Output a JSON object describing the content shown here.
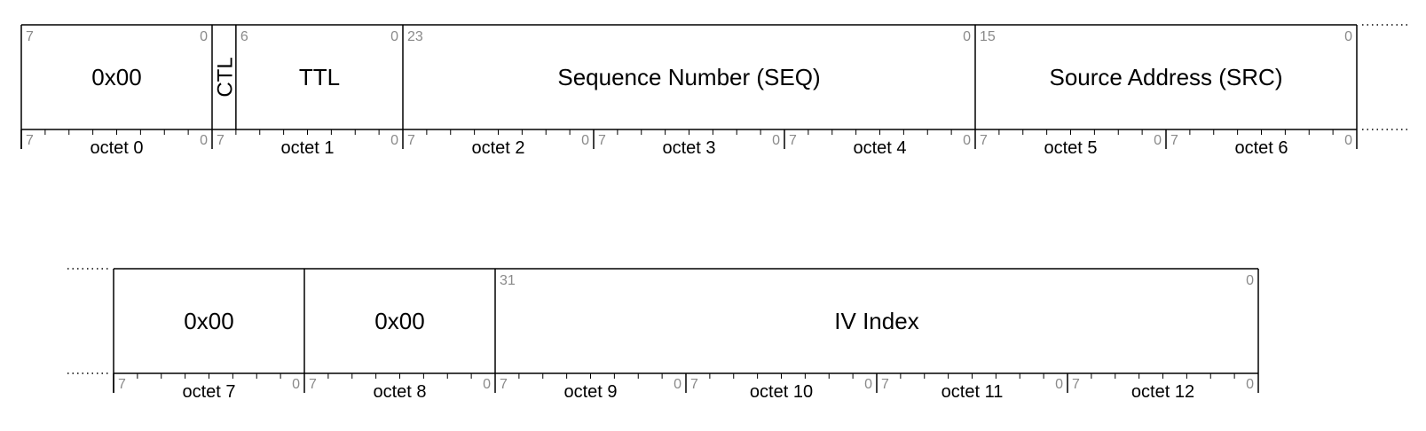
{
  "rows": [
    {
      "fields": [
        {
          "label": "0x00",
          "msb": "7",
          "lsb": "0",
          "octets": 1
        },
        {
          "label": "CTL",
          "msb": "",
          "lsb": "",
          "bits": 1,
          "vertical": true
        },
        {
          "label": "TTL",
          "msb": "6",
          "lsb": "0",
          "bits": 7
        },
        {
          "label": "Sequence Number (SEQ)",
          "msb": "23",
          "lsb": "0",
          "octets": 3
        },
        {
          "label": "Source Address (SRC)",
          "msb": "15",
          "lsb": "0",
          "octets": 2
        }
      ],
      "octets": [
        {
          "label": "octet 0",
          "msb": "7",
          "lsb": "0"
        },
        {
          "label": "octet 1",
          "msb": "7",
          "lsb": "0"
        },
        {
          "label": "octet 2",
          "msb": "7",
          "lsb": "0"
        },
        {
          "label": "octet 3",
          "msb": "7",
          "lsb": "0"
        },
        {
          "label": "octet 4",
          "msb": "7",
          "lsb": "0"
        },
        {
          "label": "octet 5",
          "msb": "7",
          "lsb": "0"
        },
        {
          "label": "octet 6",
          "msb": "7",
          "lsb": "0"
        }
      ],
      "continues_right": true
    },
    {
      "fields": [
        {
          "label": "0x00",
          "msb": "",
          "lsb": "",
          "octets": 1
        },
        {
          "label": "0x00",
          "msb": "",
          "lsb": "",
          "octets": 1
        },
        {
          "label": "IV Index",
          "msb": "31",
          "lsb": "0",
          "octets": 4
        }
      ],
      "octets": [
        {
          "label": "octet 7",
          "msb": "7",
          "lsb": "0"
        },
        {
          "label": "octet 8",
          "msb": "7",
          "lsb": "0"
        },
        {
          "label": "octet 9",
          "msb": "7",
          "lsb": "0"
        },
        {
          "label": "octet 10",
          "msb": "7",
          "lsb": "0"
        },
        {
          "label": "octet 11",
          "msb": "7",
          "lsb": "0"
        },
        {
          "label": "octet 12",
          "msb": "7",
          "lsb": "0"
        }
      ],
      "continues_left": true
    }
  ]
}
